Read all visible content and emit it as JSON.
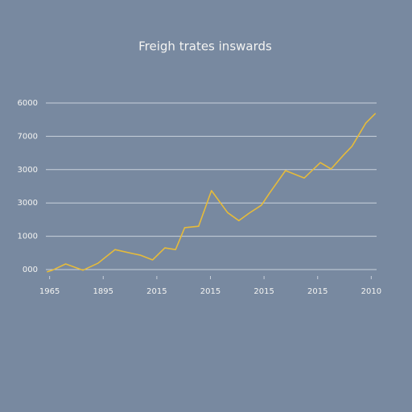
{
  "chart_data": {
    "type": "line",
    "title": "Freigh trates inswards",
    "x": [
      -0.05,
      0.05,
      0.3,
      0.62,
      0.9,
      1.22,
      1.55,
      1.7,
      1.92,
      2.15,
      2.35,
      2.52,
      2.78,
      3.02,
      3.32,
      3.53,
      3.72,
      3.95,
      4.1,
      4.4,
      4.75,
      5.05,
      5.25,
      5.49,
      5.64,
      5.9,
      6.08
    ],
    "series": [
      {
        "color": "#e6bb3a",
        "values": [
          -70,
          -20,
          170,
          -20,
          190,
          600,
          480,
          430,
          290,
          650,
          600,
          1260,
          1300,
          2370,
          1710,
          1470,
          1690,
          1930,
          2290,
          2970,
          2750,
          3210,
          3020,
          3450,
          3700,
          4400,
          4690
        ]
      }
    ],
    "xlim": [
      -0.1,
      6.1
    ],
    "xticks": [
      {
        "value": 0,
        "label": "1965"
      },
      {
        "value": 1,
        "label": "1895"
      },
      {
        "value": 2,
        "label": "2015"
      },
      {
        "value": 3,
        "label": "2015"
      },
      {
        "value": 4,
        "label": "2015"
      },
      {
        "value": 5,
        "label": "2015"
      },
      {
        "value": 6,
        "label": "2010"
      }
    ],
    "ylim": [
      -200,
      5000
    ],
    "yticks": [
      {
        "value": 0,
        "label": "000"
      },
      1000,
      {
        "value": 2000,
        "label": "3000"
      },
      3000,
      {
        "value": 4000,
        "label": "7000"
      },
      {
        "value": 5000,
        "label": "6000"
      }
    ],
    "grid": true
  }
}
